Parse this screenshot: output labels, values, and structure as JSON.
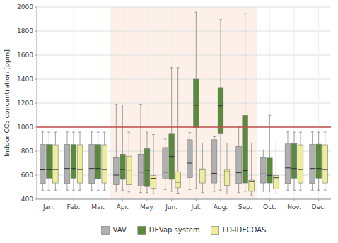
{
  "chart_data": {
    "type": "box",
    "y_label": "Indoor CO₂ concentration [ppm]",
    "categories": [
      "Jan.",
      "Feb.",
      "Mar.",
      "Apr.",
      "May.",
      "Jun.",
      "Jul.",
      "Aug.",
      "Sep.",
      "Oct.",
      "Nov.",
      "Dec."
    ],
    "ylim": [
      400,
      2000
    ],
    "yticks": [
      400,
      600,
      800,
      1000,
      1200,
      1400,
      1600,
      1800,
      2000
    ],
    "grid": true,
    "legend": "bottom",
    "reference_lines": [
      {
        "value": 1000,
        "color": "#c0504d"
      }
    ],
    "bands": [
      {
        "start": "Apr.",
        "end": "Sep.",
        "color": "#fdf0e8"
      }
    ],
    "series": [
      {
        "name": "VAV",
        "color": "#b0b0b0",
        "values": [
          {
            "whislo": 475,
            "q1": 530,
            "med": 650,
            "q3": 855,
            "whishi": 960
          },
          {
            "whislo": 475,
            "q1": 530,
            "med": 655,
            "q3": 855,
            "whishi": 960
          },
          {
            "whislo": 475,
            "q1": 530,
            "med": 655,
            "q3": 855,
            "whishi": 960
          },
          {
            "whislo": 465,
            "q1": 520,
            "med": 600,
            "q3": 750,
            "whishi": 1190
          },
          {
            "whislo": 455,
            "q1": 510,
            "med": 625,
            "q3": 775,
            "whishi": 1190
          },
          {
            "whislo": 480,
            "q1": 575,
            "med": 625,
            "q3": 830,
            "whishi": 900
          },
          {
            "whislo": 480,
            "q1": 580,
            "med": 700,
            "q3": 895,
            "whishi": 955
          },
          {
            "whislo": 465,
            "q1": 535,
            "med": 615,
            "q3": 895,
            "whishi": 920
          },
          {
            "whislo": 455,
            "q1": 530,
            "med": 620,
            "q3": 840,
            "whishi": 1000
          },
          {
            "whislo": 465,
            "q1": 535,
            "med": 610,
            "q3": 750,
            "whishi": 810
          },
          {
            "whislo": 475,
            "q1": 530,
            "med": 660,
            "q3": 860,
            "whishi": 960
          },
          {
            "whislo": 475,
            "q1": 530,
            "med": 655,
            "q3": 855,
            "whishi": 960
          }
        ]
      },
      {
        "name": "DEVap system",
        "color": "#5a8a3c",
        "values": [
          {
            "whislo": 475,
            "q1": 575,
            "med": 650,
            "q3": 855,
            "whishi": 958
          },
          {
            "whislo": 475,
            "q1": 575,
            "med": 655,
            "q3": 855,
            "whishi": 958
          },
          {
            "whislo": 475,
            "q1": 570,
            "med": 655,
            "q3": 855,
            "whishi": 958
          },
          {
            "whislo": 475,
            "q1": 565,
            "med": 648,
            "q3": 775,
            "whishi": 1185
          },
          {
            "whislo": 455,
            "q1": 505,
            "med": 642,
            "q3": 820,
            "whishi": 958
          },
          {
            "whislo": 465,
            "q1": 565,
            "med": 755,
            "q3": 948,
            "whishi": 1495
          },
          {
            "whislo": 488,
            "q1": 998,
            "med": 1183,
            "q3": 1400,
            "whishi": 1958
          },
          {
            "whislo": 475,
            "q1": 950,
            "med": 1178,
            "q3": 1330,
            "whishi": 1895
          },
          {
            "whislo": 465,
            "q1": 535,
            "med": 638,
            "q3": 1098,
            "whishi": 1948
          },
          {
            "whislo": 465,
            "q1": 535,
            "med": 598,
            "q3": 748,
            "whishi": 1098
          },
          {
            "whislo": 475,
            "q1": 575,
            "med": 655,
            "q3": 863,
            "whishi": 958
          },
          {
            "whislo": 475,
            "q1": 575,
            "med": 655,
            "q3": 858,
            "whishi": 958
          }
        ]
      },
      {
        "name": "LD-IDECOAS",
        "color": "#eeee99",
        "values": [
          {
            "whislo": 475,
            "q1": 535,
            "med": 648,
            "q3": 853,
            "whishi": 958
          },
          {
            "whislo": 475,
            "q1": 535,
            "med": 648,
            "q3": 853,
            "whishi": 958
          },
          {
            "whislo": 475,
            "q1": 535,
            "med": 648,
            "q3": 853,
            "whishi": 958
          },
          {
            "whislo": 460,
            "q1": 520,
            "med": 643,
            "q3": 758,
            "whishi": 958
          },
          {
            "whislo": 445,
            "q1": 490,
            "med": 573,
            "q3": 598,
            "whishi": 938
          },
          {
            "whislo": 450,
            "q1": 495,
            "med": 542,
            "q3": 628,
            "whishi": 1495
          },
          {
            "whislo": 455,
            "q1": 535,
            "med": 645,
            "q3": 652,
            "whishi": 868
          },
          {
            "whislo": 445,
            "q1": 515,
            "med": 628,
            "q3": 648,
            "whishi": 868
          },
          {
            "whislo": 435,
            "q1": 465,
            "med": 548,
            "q3": 558,
            "whishi": 868
          },
          {
            "whislo": 445,
            "q1": 485,
            "med": 578,
            "q3": 598,
            "whishi": 868
          },
          {
            "whislo": 475,
            "q1": 535,
            "med": 648,
            "q3": 853,
            "whishi": 958
          },
          {
            "whislo": 475,
            "q1": 535,
            "med": 648,
            "q3": 853,
            "whishi": 958
          }
        ]
      }
    ]
  }
}
